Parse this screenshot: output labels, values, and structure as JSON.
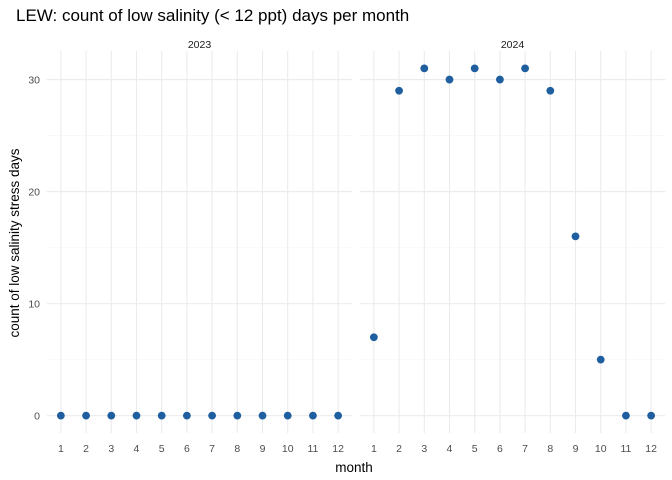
{
  "chart_data": {
    "type": "scatter",
    "title": "LEW: count of low salinity (< 12 ppt) days per month",
    "xlabel": "month",
    "ylabel": "count of low salinity stress days",
    "x_ticks": [
      "1",
      "2",
      "3",
      "4",
      "5",
      "6",
      "7",
      "8",
      "9",
      "10",
      "11",
      "12"
    ],
    "y_ticks": [
      "0",
      "10",
      "20",
      "30"
    ],
    "xlim": [
      0.45,
      12.55
    ],
    "ylim": [
      -1.55,
      32.55
    ],
    "grid": true,
    "point_color": "#1f5fa0",
    "panels": [
      {
        "label": "2023",
        "x": [
          1,
          2,
          3,
          4,
          5,
          6,
          7,
          8,
          9,
          10,
          11,
          12
        ],
        "y": [
          0,
          0,
          0,
          0,
          0,
          0,
          0,
          0,
          0,
          0,
          0,
          0
        ]
      },
      {
        "label": "2024",
        "x": [
          1,
          2,
          3,
          4,
          5,
          6,
          7,
          8,
          9,
          10,
          11,
          12
        ],
        "y": [
          7,
          29,
          31,
          30,
          31,
          30,
          31,
          29,
          16,
          5,
          0,
          0
        ]
      }
    ]
  }
}
